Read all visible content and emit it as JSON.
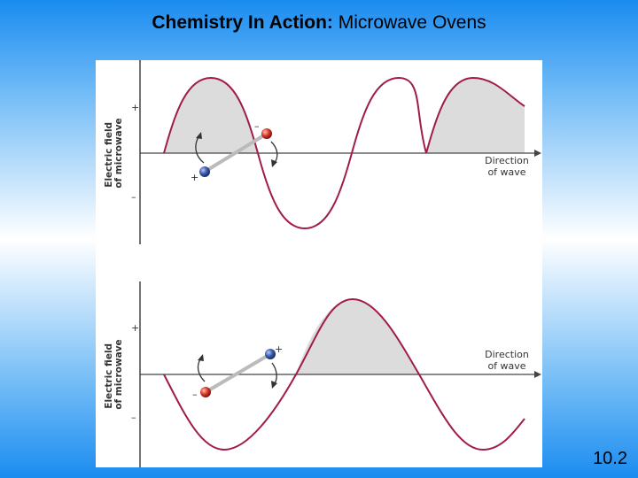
{
  "title": {
    "bold": "Chemistry In Action:",
    "rest": " Microwave Ovens"
  },
  "slide_number": "10.2",
  "panels": [
    {
      "ylabel_line1": "Electric field",
      "ylabel_line2": "of microwave",
      "plus_tick": "+",
      "minus_tick": "–",
      "direction_line1": "Direction",
      "direction_line2": "of wave",
      "atom_left_charge": "+",
      "atom_right_charge": "–"
    },
    {
      "ylabel_line1": "Electric field",
      "ylabel_line2": "of microwave",
      "plus_tick": "+",
      "minus_tick": "–",
      "direction_line1": "Direction",
      "direction_line2": "of wave",
      "atom_left_charge": "–",
      "atom_right_charge": "+"
    }
  ],
  "colors": {
    "wave": "#a01c48",
    "shade": "#dcdcdc",
    "axis": "#444444",
    "positive_atom": "#3c5bb0",
    "negative_atom": "#d83a2a"
  }
}
